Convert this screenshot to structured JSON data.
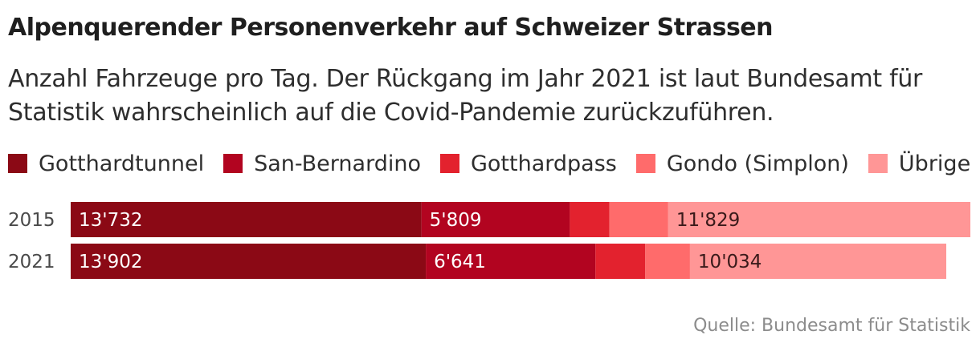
{
  "chart_data": {
    "type": "bar",
    "orientation": "horizontal",
    "stacked": true,
    "title": "Alpenquerender Personenverkehr auf Schweizer Strassen",
    "subtitle": "Anzahl Fahrzeuge pro Tag. Der Rückgang im Jahr 2021 ist laut Bundesamt für Statistik wahrscheinlich auf die Covid-Pandemie zurückzuführen.",
    "categories": [
      "2015",
      "2021"
    ],
    "series": [
      {
        "name": "Gotthardtunnel",
        "color": "#8b0915",
        "values": [
          13732,
          13902
        ],
        "labels": [
          "13'732",
          "13'902"
        ],
        "label_color": "#ffffff"
      },
      {
        "name": "San-Bernardino",
        "color": "#b20420",
        "values": [
          5809,
          6641
        ],
        "labels": [
          "5'809",
          "6'641"
        ],
        "label_color": "#ffffff"
      },
      {
        "name": "Gotthardpass",
        "color": "#e3222e",
        "values": [
          1550,
          1950
        ],
        "labels": [
          "",
          ""
        ],
        "label_color": "#ffffff"
      },
      {
        "name": "Gondo (Simplon)",
        "color": "#ff6b6b",
        "values": [
          2300,
          1750
        ],
        "labels": [
          "",
          ""
        ],
        "label_color": "#ffffff"
      },
      {
        "name": "Übrige",
        "color": "#ff9696",
        "values": [
          11829,
          10034
        ],
        "labels": [
          "11'829",
          "10'034"
        ],
        "label_color": "#3a1a1a"
      }
    ],
    "xlim": [
      0,
      35220
    ],
    "legend_position": "top",
    "grid": false,
    "source": "Quelle: Bundesamt für Statistik"
  }
}
